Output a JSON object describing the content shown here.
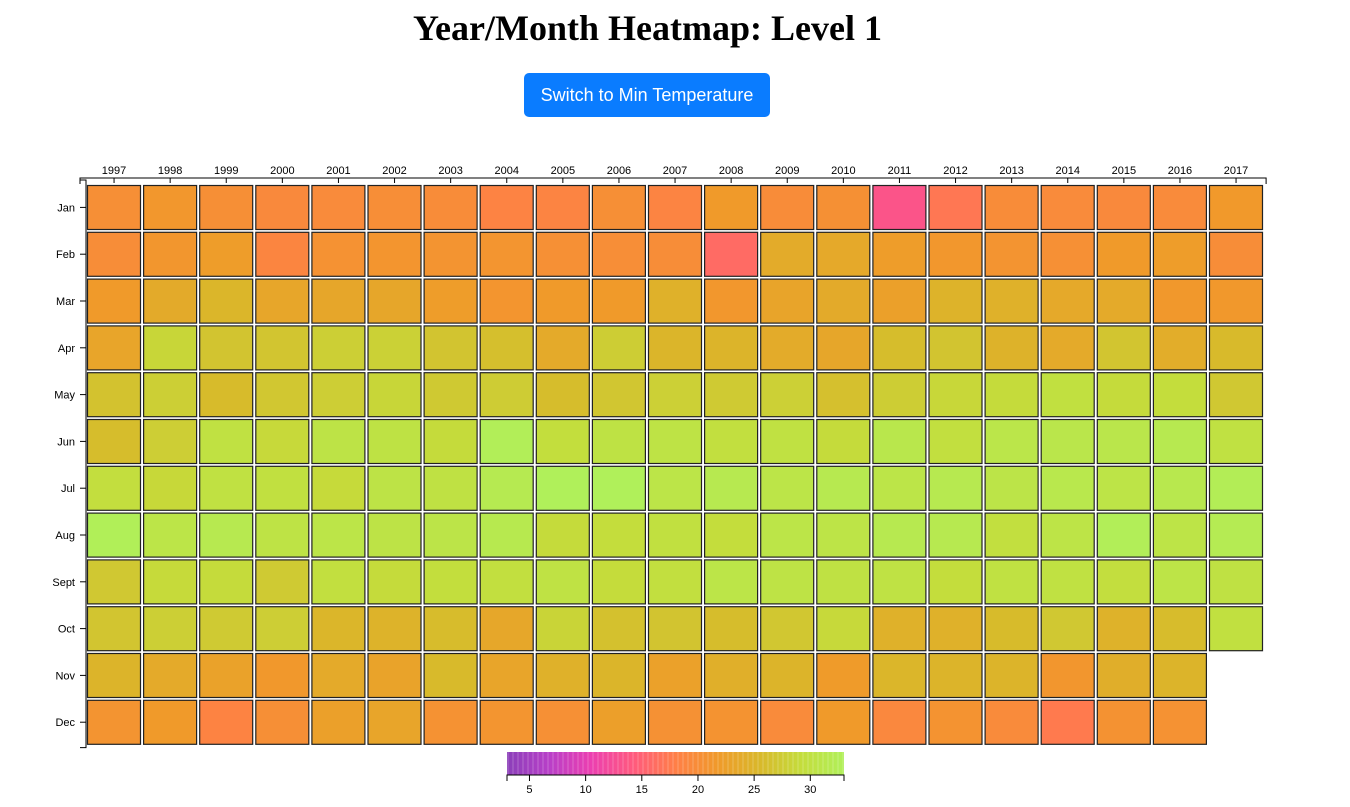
{
  "header": {
    "title": "Year/Month Heatmap: Level 1"
  },
  "controls": {
    "switch_label": "Switch to Min Temperature"
  },
  "chart_data": {
    "type": "heatmap",
    "title": "Year/Month Heatmap: Level 1",
    "x": [
      "1997",
      "1998",
      "1999",
      "2000",
      "2001",
      "2002",
      "2003",
      "2004",
      "2005",
      "2006",
      "2007",
      "2008",
      "2009",
      "2010",
      "2011",
      "2012",
      "2013",
      "2014",
      "2015",
      "2016",
      "2017"
    ],
    "y": [
      "Jan",
      "Feb",
      "Mar",
      "Apr",
      "May",
      "Jun",
      "Jul",
      "Aug",
      "Sept",
      "Oct",
      "Nov",
      "Dec"
    ],
    "values": [
      [
        20.2,
        21.3,
        20.2,
        19.4,
        19.6,
        20.1,
        19.8,
        18.5,
        18.7,
        20.2,
        18.7,
        21.7,
        19.8,
        20.4,
        13.4,
        17.2,
        19.8,
        19.6,
        19.4,
        19.6,
        21.6
      ],
      [
        20.0,
        21.2,
        22.1,
        18.9,
        20.6,
        21.1,
        20.9,
        21.0,
        20.3,
        20.1,
        20.0,
        16.0,
        23.9,
        23.6,
        22.1,
        21.3,
        20.9,
        20.3,
        21.7,
        22.1,
        20.0
      ],
      [
        21.8,
        23.8,
        25.2,
        23.2,
        23.3,
        23.3,
        22.1,
        21.1,
        21.7,
        21.8,
        24.6,
        21.3,
        23.0,
        23.8,
        22.5,
        24.9,
        24.6,
        23.6,
        23.7,
        21.5,
        21.5
      ],
      [
        23.1,
        28.5,
        26.7,
        26.8,
        27.8,
        28.0,
        26.7,
        26.2,
        23.7,
        27.6,
        25.1,
        25.0,
        23.9,
        23.3,
        26.0,
        26.7,
        24.8,
        23.7,
        26.8,
        24.1,
        25.7
      ],
      [
        26.5,
        27.8,
        25.8,
        27.0,
        27.7,
        28.5,
        27.2,
        27.5,
        26.0,
        26.9,
        27.9,
        27.3,
        27.9,
        26.3,
        27.6,
        28.6,
        29.0,
        29.8,
        29.0,
        29.2,
        27.1
      ],
      [
        26.0,
        27.7,
        30.0,
        28.8,
        30.5,
        30.3,
        29.0,
        32.7,
        29.4,
        30.3,
        30.4,
        29.6,
        30.0,
        29.0,
        31.3,
        29.6,
        31.0,
        31.1,
        31.1,
        31.7,
        30.0
      ],
      [
        29.5,
        28.7,
        30.0,
        29.8,
        28.9,
        30.5,
        30.1,
        31.9,
        33.2,
        33.5,
        30.8,
        31.7,
        30.8,
        31.7,
        30.8,
        31.7,
        30.7,
        31.4,
        30.6,
        31.5,
        32.5
      ],
      [
        32.8,
        30.8,
        31.7,
        30.4,
        30.8,
        30.5,
        30.7,
        31.6,
        29.0,
        29.3,
        29.8,
        29.3,
        30.8,
        30.6,
        31.7,
        31.7,
        29.6,
        30.6,
        32.7,
        30.6,
        32.1
      ],
      [
        27.1,
        28.9,
        29.0,
        27.3,
        29.6,
        29.0,
        29.4,
        29.6,
        30.2,
        29.1,
        29.6,
        30.8,
        30.4,
        30.1,
        30.2,
        29.3,
        30.0,
        30.0,
        29.5,
        30.6,
        30.1
      ],
      [
        26.8,
        27.8,
        27.3,
        27.7,
        25.2,
        24.9,
        25.9,
        23.4,
        28.3,
        26.4,
        26.7,
        26.0,
        27.0,
        28.8,
        24.6,
        24.6,
        25.8,
        27.1,
        24.7,
        25.9,
        29.8
      ],
      [
        25.0,
        23.7,
        22.7,
        21.5,
        23.7,
        22.9,
        25.7,
        23.1,
        24.6,
        25.1,
        22.6,
        24.4,
        25.0,
        21.9,
        25.2,
        25.0,
        25.0,
        21.2,
        24.3,
        25.0,
        null
      ],
      [
        20.9,
        21.7,
        18.6,
        20.2,
        22.5,
        23.1,
        20.6,
        21.0,
        20.3,
        22.4,
        20.5,
        20.8,
        19.6,
        21.7,
        19.2,
        20.8,
        19.6,
        17.5,
        20.7,
        20.6,
        null
      ]
    ],
    "legend": {
      "ticks": [
        5,
        10,
        15,
        20,
        25,
        30
      ],
      "range": [
        3,
        33
      ]
    },
    "colors": {
      "stops": [
        "#8b3fb9",
        "#b83fc8",
        "#ec3fb0",
        "#ff5a7e",
        "#ff7f47",
        "#f09a2a",
        "#d9b82a",
        "#c4dd3c",
        "#b0f05a"
      ],
      "button": "#0a7cff"
    }
  }
}
